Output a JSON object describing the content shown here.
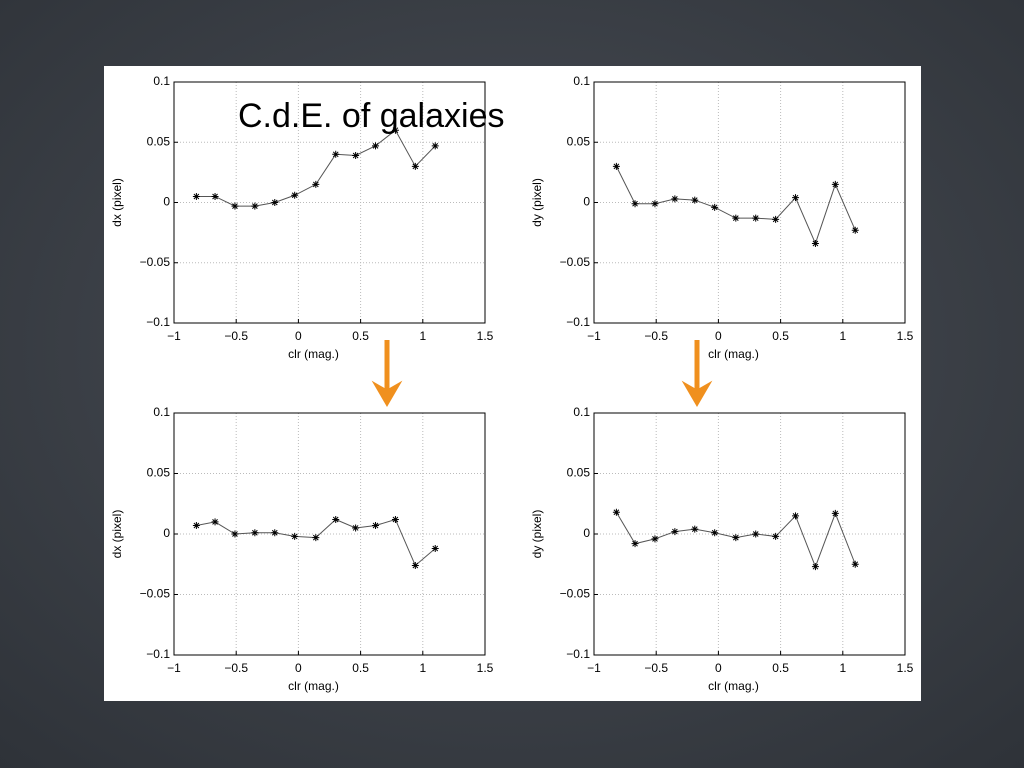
{
  "title": "C.d.E. of galaxies",
  "chart_data": [
    {
      "type": "line",
      "xlabel": "clr (mag.)",
      "ylabel": "dx (pixel)",
      "x": [
        -0.82,
        -0.67,
        -0.51,
        -0.35,
        -0.19,
        -0.03,
        0.14,
        0.3,
        0.46,
        0.62,
        0.78,
        0.94,
        1.1
      ],
      "series": [
        {
          "color": "#555555",
          "values": [
            0.005,
            0.005,
            -0.003,
            -0.003,
            0,
            0.006,
            0.015,
            0.04,
            0.039,
            0.047,
            0.06,
            0.03,
            0.047
          ]
        }
      ],
      "xlim": [
        -1,
        1.5
      ],
      "xticks": [
        {
          "value": -1,
          "label": "−1"
        },
        {
          "value": -0.5,
          "label": "−0.5"
        },
        0,
        0.5,
        1,
        1.5
      ],
      "ylim": [
        -0.1,
        0.1
      ],
      "yticks": [
        {
          "value": -0.1,
          "label": "−0.1"
        },
        {
          "value": -0.05,
          "label": "−0.05"
        },
        0,
        0.05,
        0.1
      ],
      "grid": true
    },
    {
      "type": "line",
      "xlabel": "clr (mag.)",
      "ylabel": "dy (pixel)",
      "x": [
        -0.82,
        -0.67,
        -0.51,
        -0.35,
        -0.19,
        -0.03,
        0.14,
        0.3,
        0.46,
        0.62,
        0.78,
        0.94,
        1.1
      ],
      "series": [
        {
          "color": "#555555",
          "values": [
            0.03,
            -0.001,
            -0.001,
            0.003,
            0.002,
            -0.004,
            -0.013,
            -0.013,
            -0.014,
            0.004,
            -0.034,
            0.015,
            -0.023
          ]
        }
      ],
      "xlim": [
        -1,
        1.5
      ],
      "xticks": [
        {
          "value": -1,
          "label": "−1"
        },
        {
          "value": -0.5,
          "label": "−0.5"
        },
        0,
        0.5,
        1,
        1.5
      ],
      "ylim": [
        -0.1,
        0.1
      ],
      "yticks": [
        {
          "value": -0.1,
          "label": "−0.1"
        },
        {
          "value": -0.05,
          "label": "−0.05"
        },
        0,
        0.05,
        0.1
      ],
      "grid": true
    },
    {
      "type": "line",
      "xlabel": "clr (mag.)",
      "ylabel": "dx (pixel)",
      "x": [
        -0.82,
        -0.67,
        -0.51,
        -0.35,
        -0.19,
        -0.03,
        0.14,
        0.3,
        0.46,
        0.62,
        0.78,
        0.94,
        1.1
      ],
      "series": [
        {
          "color": "#555555",
          "values": [
            0.007,
            0.01,
            0,
            0.001,
            0.001,
            -0.002,
            -0.003,
            0.012,
            0.005,
            0.007,
            0.012,
            -0.026,
            -0.012
          ]
        }
      ],
      "xlim": [
        -1,
        1.5
      ],
      "xticks": [
        {
          "value": -1,
          "label": "−1"
        },
        {
          "value": -0.5,
          "label": "−0.5"
        },
        0,
        0.5,
        1,
        1.5
      ],
      "ylim": [
        -0.1,
        0.1
      ],
      "yticks": [
        {
          "value": -0.1,
          "label": "−0.1"
        },
        {
          "value": -0.05,
          "label": "−0.05"
        },
        0,
        0.05,
        0.1
      ],
      "grid": true
    },
    {
      "type": "line",
      "xlabel": "clr (mag.)",
      "ylabel": "dy (pixel)",
      "x": [
        -0.82,
        -0.67,
        -0.51,
        -0.35,
        -0.19,
        -0.03,
        0.14,
        0.3,
        0.46,
        0.62,
        0.78,
        0.94,
        1.1
      ],
      "series": [
        {
          "color": "#555555",
          "values": [
            0.018,
            -0.008,
            -0.004,
            0.002,
            0.004,
            0.001,
            -0.003,
            0,
            -0.002,
            0.015,
            -0.027,
            0.017,
            -0.025
          ]
        }
      ],
      "xlim": [
        -1,
        1.5
      ],
      "xticks": [
        {
          "value": -1,
          "label": "−1"
        },
        {
          "value": -0.5,
          "label": "−0.5"
        },
        0,
        0.5,
        1,
        1.5
      ],
      "ylim": [
        -0.1,
        0.1
      ],
      "yticks": [
        {
          "value": -0.1,
          "label": "−0.1"
        },
        {
          "value": -0.05,
          "label": "−0.05"
        },
        0,
        0.05,
        0.1
      ],
      "grid": true
    }
  ]
}
